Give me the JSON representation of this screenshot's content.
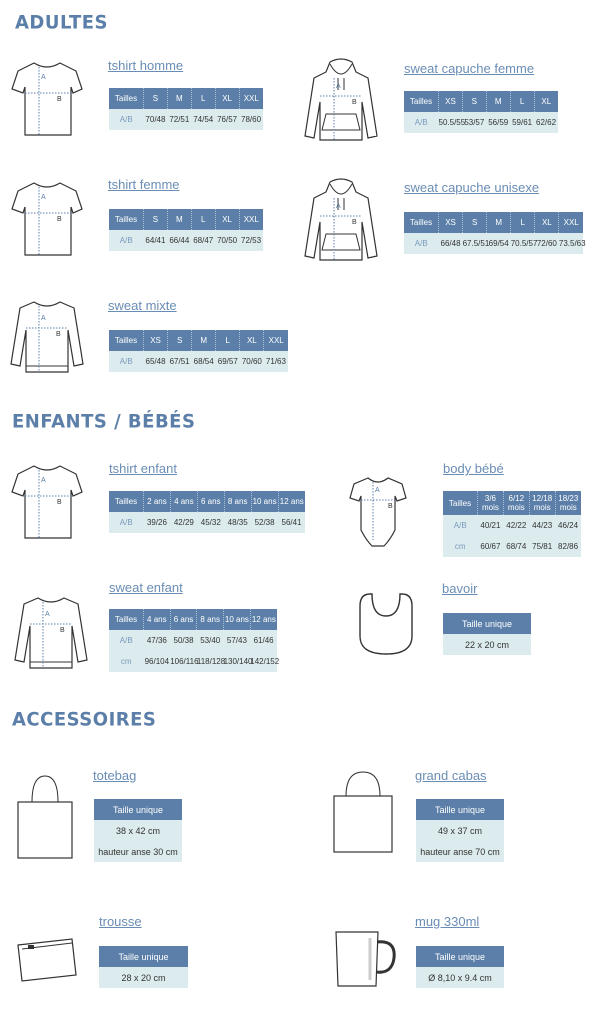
{
  "sections": {
    "adultes": "ADULTES",
    "enfants": "ENFANTS / BÉBÉS",
    "accessoires": "ACCESSOIRES"
  },
  "colors": {
    "header": "#5b7fa8",
    "row": "#dcebed",
    "title": "#6a8db5"
  },
  "products": {
    "tshirt_homme": {
      "title": "tshirt homme",
      "icon": "tshirt-icon",
      "header": [
        "Tailles",
        "S",
        "M",
        "L",
        "XL",
        "XXL"
      ],
      "rows": [
        [
          "A/B",
          "70/48",
          "72/51",
          "74/54",
          "76/57",
          "78/60"
        ]
      ]
    },
    "tshirt_femme": {
      "title": "tshirt femme",
      "icon": "tshirt-icon",
      "header": [
        "Tailles",
        "S",
        "M",
        "L",
        "XL",
        "XXL"
      ],
      "rows": [
        [
          "A/B",
          "64/41",
          "66/44",
          "68/47",
          "70/50",
          "72/53"
        ]
      ]
    },
    "sweat_mixte": {
      "title": "sweat mixte",
      "icon": "sweatshirt-icon",
      "header": [
        "Tailles",
        "XS",
        "S",
        "M",
        "L",
        "XL",
        "XXL"
      ],
      "rows": [
        [
          "A/B",
          "65/48",
          "67/51",
          "68/54",
          "69/57",
          "70/60",
          "71/63"
        ]
      ]
    },
    "sweat_capuche_femme": {
      "title": "sweat capuche femme",
      "icon": "hoodie-icon",
      "header": [
        "Tailles",
        "XS",
        "S",
        "M",
        "L",
        "XL"
      ],
      "rows": [
        [
          "A/B",
          "50.5/55",
          "53/57",
          "56/59",
          "59/61",
          "62/62"
        ]
      ]
    },
    "sweat_capuche_unisexe": {
      "title": "sweat capuche unisexe",
      "icon": "hoodie-icon",
      "header": [
        "Tailles",
        "XS",
        "S",
        "M",
        "L",
        "XL",
        "XXL"
      ],
      "rows": [
        [
          "A/B",
          "66/48",
          "67.5/51",
          "69/54",
          "70.5/57",
          "72/60",
          "73.5/63"
        ]
      ]
    },
    "tshirt_enfant": {
      "title": "tshirt enfant",
      "icon": "tshirt-icon",
      "header": [
        "Tailles",
        "2 ans",
        "4 ans",
        "6 ans",
        "8 ans",
        "10 ans",
        "12 ans"
      ],
      "rows": [
        [
          "A/B",
          "39/26",
          "42/29",
          "45/32",
          "48/35",
          "52/38",
          "56/41"
        ]
      ]
    },
    "body_bebe": {
      "title": " body bébé",
      "icon": "baby-bodysuit-icon",
      "header": [
        "Tailles",
        "3/6 mois",
        "6/12 mois",
        "12/18 mois",
        "18/23 mois"
      ],
      "rows": [
        [
          "A/B",
          "40/21",
          "42/22",
          "44/23",
          "46/24"
        ],
        [
          "cm",
          "60/67",
          "68/74",
          "75/81",
          "82/86"
        ]
      ]
    },
    "sweat_enfant": {
      "title": "sweat enfant",
      "icon": "sweatshirt-icon",
      "header": [
        "Tailles",
        "4 ans",
        "6 ans",
        "8 ans",
        "10 ans",
        "12 ans"
      ],
      "rows": [
        [
          "A/B",
          "47/36",
          "50/38",
          "53/40",
          "57/43",
          "61/46"
        ],
        [
          "cm",
          "96/104",
          "106/116",
          "118/128",
          "130/140",
          "142/152"
        ]
      ]
    },
    "bavoir": {
      "title": "bavoir",
      "icon": "bib-icon",
      "header": [
        "Taille unique"
      ],
      "rows": [
        [
          "22 x 20 cm"
        ]
      ]
    },
    "totebag": {
      "title": "totebag",
      "icon": "tote-bag-icon",
      "header": [
        "Taille unique"
      ],
      "rows": [
        [
          "38 x 42 cm"
        ],
        [
          "hauteur anse 30 cm"
        ]
      ]
    },
    "grand_cabas": {
      "title": "grand cabas",
      "icon": "shopping-bag-icon",
      "header": [
        "Taille unique"
      ],
      "rows": [
        [
          "49 x 37 cm"
        ],
        [
          "hauteur anse 70 cm"
        ]
      ]
    },
    "trousse": {
      "title": "trousse",
      "icon": "pouch-icon",
      "header": [
        "Taille unique"
      ],
      "rows": [
        [
          "28 x 20 cm"
        ]
      ]
    },
    "mug": {
      "title": "mug 330ml",
      "icon": "mug-icon",
      "header": [
        "Taille unique"
      ],
      "rows": [
        [
          "Ø 8,10 x 9.4 cm"
        ]
      ]
    }
  }
}
